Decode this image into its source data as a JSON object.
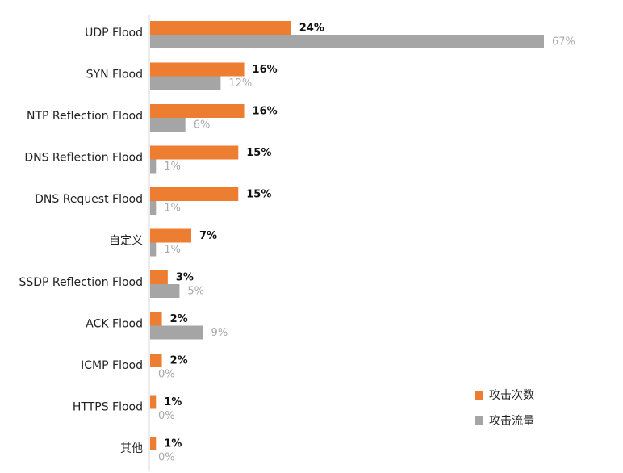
{
  "chart_data": {
    "type": "bar",
    "orientation": "horizontal",
    "categories": [
      "UDP Flood",
      "SYN Flood",
      "NTP Reflection Flood",
      "DNS Reflection Flood",
      "DNS Request Flood",
      "自定义",
      "SSDP Reflection Flood",
      "ACK Flood",
      "ICMP Flood",
      "HTTPS Flood",
      "其他"
    ],
    "series": [
      {
        "name": "攻击次数",
        "color": "#ED7D31",
        "values": [
          24,
          16,
          16,
          15,
          15,
          7,
          3,
          2,
          2,
          1,
          1
        ],
        "labels": [
          "24%",
          "16%",
          "16%",
          "15%",
          "15%",
          "7%",
          "3%",
          "2%",
          "2%",
          "1%",
          "1%"
        ]
      },
      {
        "name": "攻击流量",
        "color": "#A5A5A5",
        "values": [
          67,
          12,
          6,
          1,
          1,
          1,
          5,
          9,
          0,
          0,
          0
        ],
        "labels": [
          "67%",
          "12%",
          "6%",
          "1%",
          "1%",
          "1%",
          "5%",
          "9%",
          "0%",
          "0%",
          "0%"
        ]
      }
    ],
    "xlim": [
      0,
      67
    ],
    "grid": false,
    "legend_position": "bottom-right",
    "title": "",
    "xlabel": "",
    "ylabel": ""
  }
}
